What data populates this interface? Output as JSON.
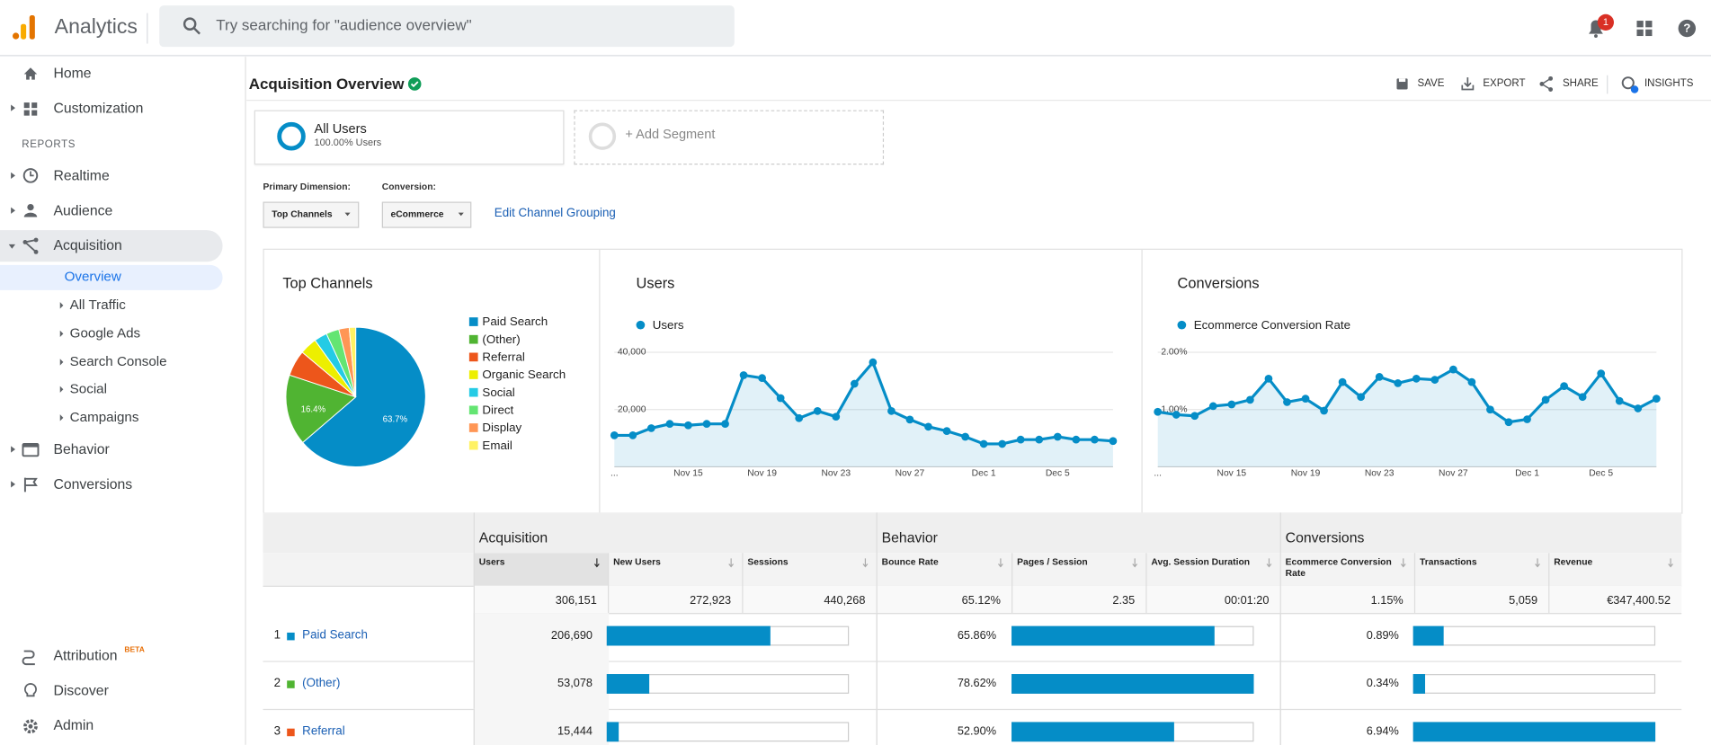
{
  "header": {
    "app_name": "Analytics",
    "search_placeholder": "Try searching for \"audience overview\"",
    "notification_count": "1"
  },
  "sidebar": {
    "items": [
      "Home",
      "Customization"
    ],
    "reports_heading": "REPORTS",
    "reports": [
      "Realtime",
      "Audience",
      "Acquisition"
    ],
    "acquisition_items": [
      "Overview",
      "All Traffic",
      "Google Ads",
      "Search Console",
      "Social",
      "Campaigns"
    ],
    "more_reports": [
      "Behavior",
      "Conversions"
    ],
    "bottom": [
      "Attribution",
      "Discover",
      "Admin"
    ],
    "beta": "BETA"
  },
  "report": {
    "title": "Acquisition Overview",
    "actions": [
      "SAVE",
      "EXPORT",
      "SHARE",
      "INSIGHTS"
    ],
    "segment": {
      "name": "All Users",
      "share": "100.00% Users",
      "add": "+ Add Segment"
    },
    "primary_dimension_label": "Primary Dimension:",
    "primary_dimension": "Top Channels",
    "conversion_label": "Conversion:",
    "conversion": "eCommerce",
    "edit_link": "Edit Channel Grouping"
  },
  "chart_data": [
    {
      "type": "pie",
      "title": "Top Channels",
      "categories": [
        "Paid Search",
        "(Other)",
        "Referral",
        "Organic Search",
        "Social",
        "Direct",
        "Display",
        "Email"
      ],
      "values": [
        63.7,
        16.4,
        6,
        4,
        3,
        3,
        2.4,
        1.5
      ],
      "value_labels": [
        "63.7%",
        "16.4%",
        null,
        null,
        null,
        null,
        null,
        null
      ],
      "colors": [
        "#058dc7",
        "#50b432",
        "#ed561b",
        "#edef00",
        "#24cbe5",
        "#64e572",
        "#ff9655",
        "#fff263"
      ]
    },
    {
      "type": "line",
      "title": "Users",
      "categories": [
        "...",
        null,
        null,
        null,
        "Nov 15",
        null,
        null,
        null,
        "Nov 19",
        null,
        null,
        null,
        "Nov 23",
        null,
        null,
        null,
        "Nov 27",
        null,
        null,
        null,
        "Dec 1",
        null,
        null,
        null,
        "Dec 5",
        null,
        null,
        null
      ],
      "series": [
        {
          "name": "Users",
          "color": "#058dc7",
          "values": [
            11000,
            11000,
            13500,
            15000,
            14500,
            15000,
            15000,
            32000,
            31000,
            24000,
            17000,
            19500,
            17500,
            29000,
            36500,
            19500,
            16500,
            14000,
            12500,
            10500,
            8000,
            8000,
            9500,
            9500,
            10500,
            9500,
            9500,
            9000
          ]
        }
      ],
      "ylim": [
        0,
        40000
      ],
      "yticks": [
        {
          "value": 20000,
          "label": "20,000"
        },
        {
          "value": 40000,
          "label": "40,000"
        }
      ],
      "grid": true
    },
    {
      "type": "line",
      "title": "Conversions",
      "categories": [
        "...",
        null,
        null,
        null,
        "Nov 15",
        null,
        null,
        null,
        "Nov 19",
        null,
        null,
        null,
        "Nov 23",
        null,
        null,
        null,
        "Nov 27",
        null,
        null,
        null,
        "Dec 1",
        null,
        null,
        null,
        "Dec 5",
        null,
        null,
        null
      ],
      "series": [
        {
          "name": "Ecommerce Conversion Rate",
          "color": "#058dc7",
          "values": [
            0.96,
            0.91,
            0.89,
            1.06,
            1.09,
            1.17,
            1.54,
            1.13,
            1.19,
            0.98,
            1.48,
            1.22,
            1.57,
            1.46,
            1.54,
            1.52,
            1.7,
            1.48,
            1.0,
            0.78,
            0.83,
            1.17,
            1.41,
            1.22,
            1.63,
            1.15,
            1.02,
            1.19
          ]
        }
      ],
      "ylim": [
        0,
        2
      ],
      "yticks": [
        {
          "value": 1,
          "label": "1.00%"
        },
        {
          "value": 2,
          "label": "2.00%"
        }
      ],
      "grid": true
    }
  ],
  "table": {
    "groups": [
      "Acquisition",
      "Behavior",
      "Conversions"
    ],
    "columns": [
      "Users",
      "New Users",
      "Sessions",
      "Bounce Rate",
      "Pages / Session",
      "Avg. Session Duration",
      "Ecommerce Conversion Rate",
      "Transactions",
      "Revenue"
    ],
    "totals": [
      "306,151",
      "272,923",
      "440,268",
      "65.12%",
      "2.35",
      "00:01:20",
      "1.15%",
      "5,059",
      "€347,400.52"
    ],
    "rows": [
      {
        "rank": "1",
        "channel": "Paid Search",
        "color": "#058dc7",
        "users": "206,690",
        "bounce_rate": "65.86%",
        "conversion_rate": "0.89%",
        "bars": [
          67.6,
          83.8,
          12.8
        ]
      },
      {
        "rank": "2",
        "channel": "(Other)",
        "color": "#50b432",
        "users": "53,078",
        "bounce_rate": "78.62%",
        "conversion_rate": "0.34%",
        "bars": [
          17.6,
          100,
          4.9
        ]
      },
      {
        "rank": "3",
        "channel": "Referral",
        "color": "#ed561b",
        "users": "15,444",
        "bounce_rate": "52.90%",
        "conversion_rate": "6.94%",
        "bars": [
          5,
          67.3,
          100
        ]
      }
    ]
  }
}
